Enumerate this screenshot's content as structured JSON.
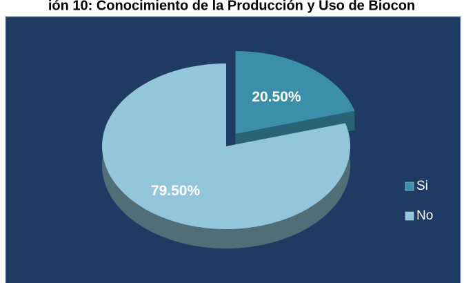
{
  "chart_data": {
    "type": "pie",
    "title": "ión 10: Conocimiento de la Producción y Uso de Biocon",
    "categories": [
      "Si",
      "No"
    ],
    "values": [
      20.5,
      79.5
    ],
    "value_labels": [
      "20.50%",
      "79.50%"
    ],
    "colors": [
      "#3b8fa9",
      "#93c6da"
    ],
    "legend": "right"
  }
}
